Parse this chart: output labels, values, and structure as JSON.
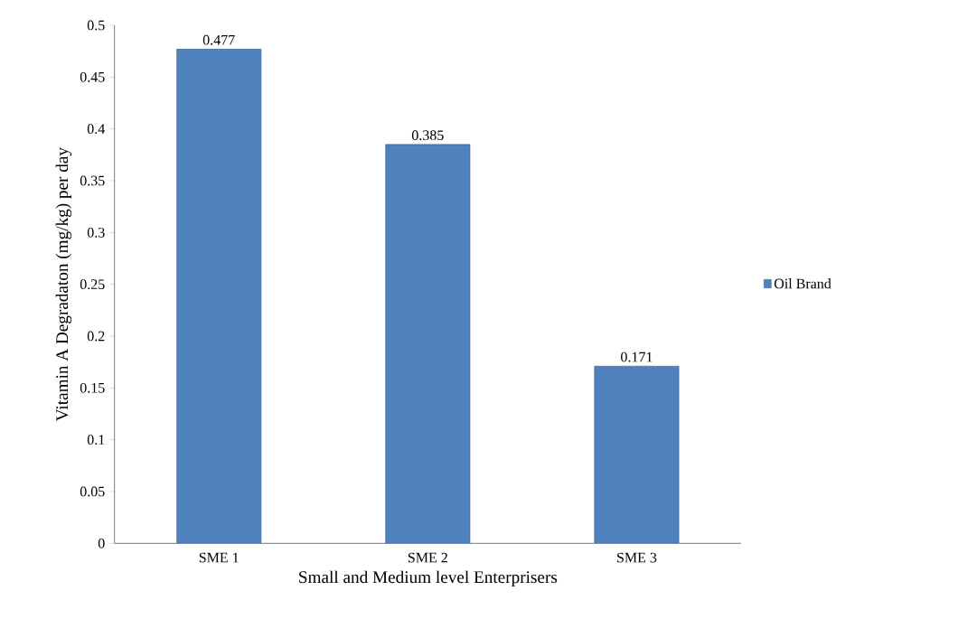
{
  "chart_data": {
    "type": "bar",
    "xlabel": "Small and Medium level Enterprisers",
    "ylabel": "Vitamin A Degradaton  (mg/kg) per day",
    "categories": [
      "SME 1",
      "SME 2",
      "SME 3"
    ],
    "series": [
      {
        "name": "Oil Brand",
        "color": "#4f81bd",
        "values": [
          0.477,
          0.385,
          0.171
        ]
      }
    ],
    "ylim": [
      0,
      0.5
    ],
    "yticks": [
      0,
      0.05,
      0.1,
      0.15,
      0.2,
      0.25,
      0.3,
      0.35,
      0.4,
      0.45,
      0.5
    ],
    "data_labels": true,
    "legend": "right",
    "grid": false
  }
}
